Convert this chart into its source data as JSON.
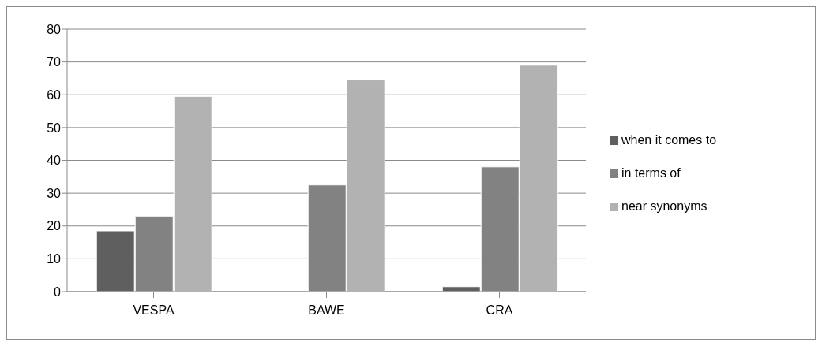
{
  "chart_data": {
    "type": "bar",
    "categories": [
      "VESPA",
      "BAWE",
      "CRA"
    ],
    "series": [
      {
        "name": "when it comes to",
        "color": "#5f5f5f",
        "values": [
          18.5,
          0,
          1.5
        ]
      },
      {
        "name": "in terms of",
        "color": "#828282",
        "values": [
          23,
          32.5,
          38
        ]
      },
      {
        "name": "near synonyms",
        "color": "#b2b2b2",
        "values": [
          59.5,
          64.5,
          69
        ]
      }
    ],
    "ylim": [
      0,
      80
    ],
    "yticks": [
      0,
      10,
      20,
      30,
      40,
      50,
      60,
      70,
      80
    ],
    "grid": "y",
    "legend": "right"
  }
}
